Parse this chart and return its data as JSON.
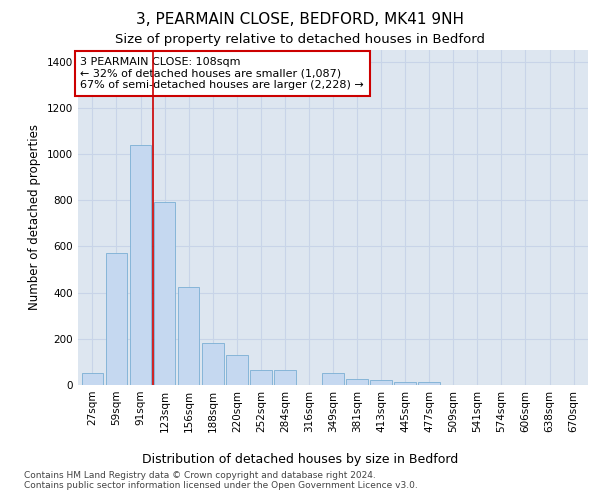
{
  "title": "3, PEARMAIN CLOSE, BEDFORD, MK41 9NH",
  "subtitle": "Size of property relative to detached houses in Bedford",
  "xlabel": "Distribution of detached houses by size in Bedford",
  "ylabel": "Number of detached properties",
  "categories": [
    "27sqm",
    "59sqm",
    "91sqm",
    "123sqm",
    "156sqm",
    "188sqm",
    "220sqm",
    "252sqm",
    "284sqm",
    "316sqm",
    "349sqm",
    "381sqm",
    "413sqm",
    "445sqm",
    "477sqm",
    "509sqm",
    "541sqm",
    "574sqm",
    "606sqm",
    "638sqm",
    "670sqm"
  ],
  "values": [
    50,
    572,
    1040,
    790,
    425,
    180,
    128,
    65,
    65,
    0,
    50,
    28,
    22,
    15,
    12,
    0,
    0,
    0,
    0,
    0,
    0
  ],
  "bar_color": "#c5d8f0",
  "bar_edge_color": "#7bafd4",
  "vline_x": 2.5,
  "vline_color": "#cc0000",
  "annotation_text": "3 PEARMAIN CLOSE: 108sqm\n← 32% of detached houses are smaller (1,087)\n67% of semi-detached houses are larger (2,228) →",
  "annotation_box_color": "#ffffff",
  "annotation_box_edge_color": "#cc0000",
  "ylim": [
    0,
    1450
  ],
  "yticks": [
    0,
    200,
    400,
    600,
    800,
    1000,
    1200,
    1400
  ],
  "grid_color": "#c8d4e8",
  "bg_color": "#dde6f0",
  "footnote": "Contains HM Land Registry data © Crown copyright and database right 2024.\nContains public sector information licensed under the Open Government Licence v3.0.",
  "title_fontsize": 11,
  "subtitle_fontsize": 9.5,
  "xlabel_fontsize": 9,
  "ylabel_fontsize": 8.5,
  "tick_fontsize": 7.5,
  "annot_fontsize": 8,
  "footnote_fontsize": 6.5
}
